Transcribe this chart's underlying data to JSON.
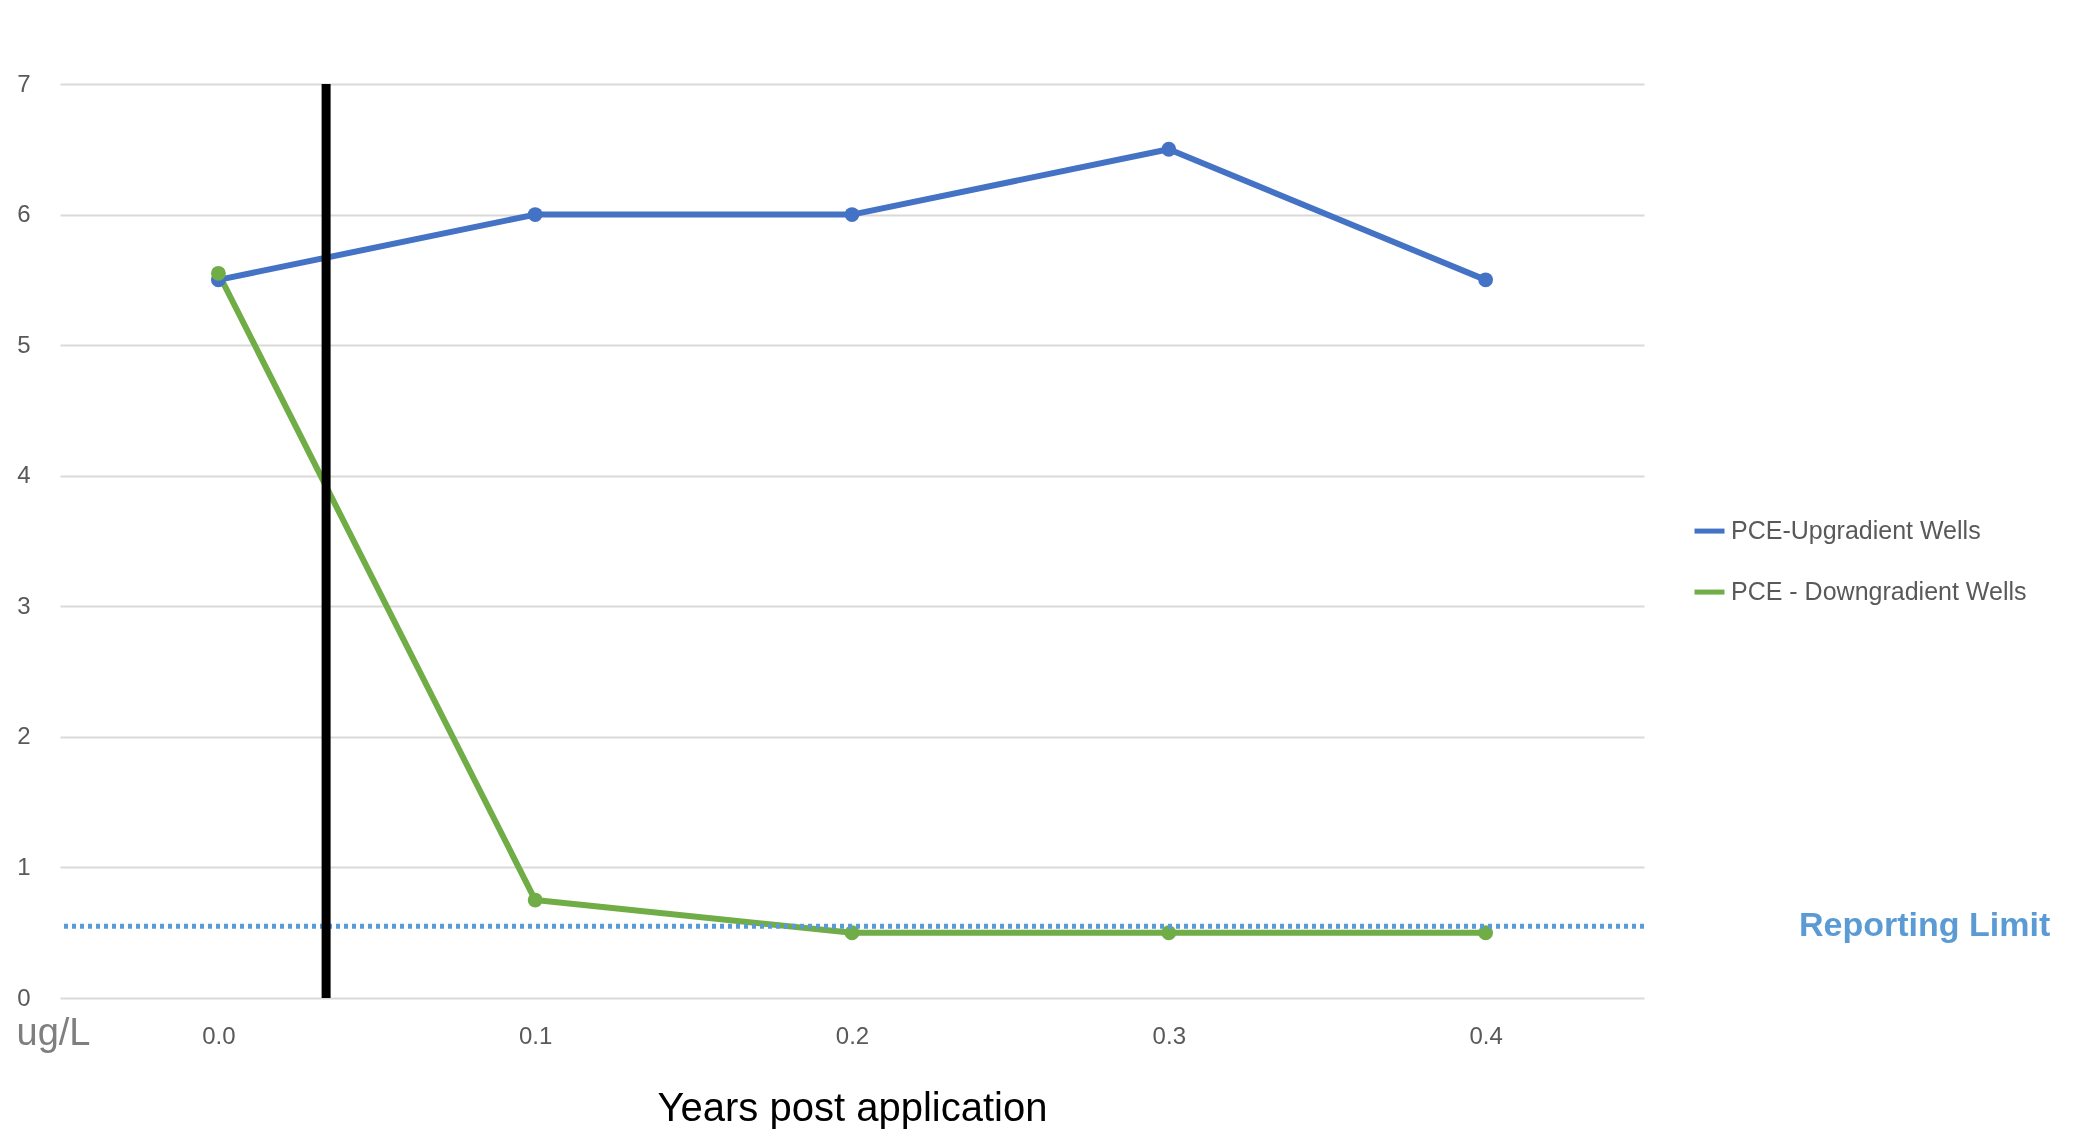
{
  "chart_data": {
    "type": "line",
    "xlabel": "Years post application",
    "ylabel": "ug/L",
    "x": [
      0,
      0.1,
      0.2,
      0.3,
      0.4
    ],
    "series": [
      {
        "name": "PCE-Upgradient Wells",
        "color": "#4472c4",
        "values": [
          5.5,
          6,
          6,
          6.5,
          5.5
        ]
      },
      {
        "name": "PCE - Downgradient Wells",
        "color": "#70ad47",
        "values": [
          5.55,
          0.75,
          0.5,
          0.5,
          0.5
        ]
      }
    ],
    "xlim": [
      -0.05,
      0.45
    ],
    "xticks": [
      {
        "value": 0,
        "label": "0.0"
      },
      0.1,
      0.2,
      0.3,
      0.4
    ],
    "ylim": [
      0,
      7
    ],
    "yticks": [
      0,
      1,
      2,
      3,
      4,
      5,
      6,
      7
    ],
    "ref_lines": [
      {
        "axis": "y",
        "value": 0.55,
        "label": "Reporting Limit",
        "color": "#5b9bd5",
        "line_style": "dotted"
      },
      {
        "axis": "x",
        "value": 0.034,
        "color": "#000000",
        "line_style": "solid"
      }
    ],
    "grid": "y",
    "legend": "right",
    "marker": "circle",
    "line_style": "solid"
  }
}
